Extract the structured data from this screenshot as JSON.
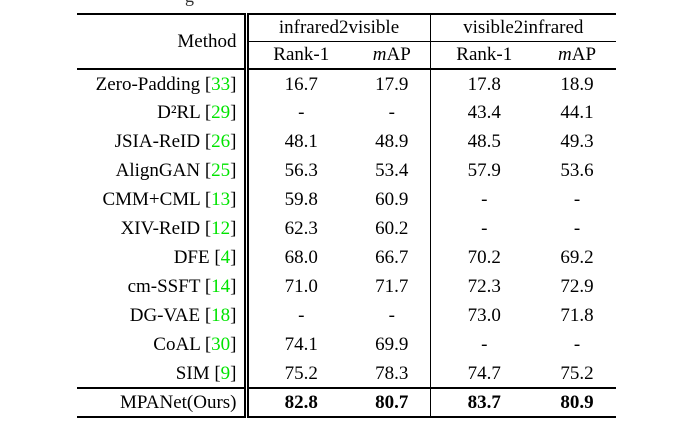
{
  "caption_fragment": "g",
  "colors": {
    "citation_green": "#00E400",
    "text": "#000000",
    "rule": "#000000",
    "background": "#ffffff"
  },
  "table": {
    "method_header": "Method",
    "groups": [
      {
        "label": "infrared2visible"
      },
      {
        "label": "visible2infrared"
      }
    ],
    "sub_headers": {
      "rank1": "Rank-1",
      "map_italic": "m",
      "map_rest": "AP"
    },
    "columns_per_group": [
      "Rank-1",
      "mAP"
    ],
    "rows": [
      {
        "method": "Zero-Padding",
        "cite": "33",
        "values": [
          "16.7",
          "17.9",
          "17.8",
          "18.9"
        ],
        "final": false
      },
      {
        "method": "D²RL",
        "cite": "29",
        "values": [
          "-",
          "-",
          "43.4",
          "44.1"
        ],
        "final": false
      },
      {
        "method": "JSIA-ReID",
        "cite": "26",
        "values": [
          "48.1",
          "48.9",
          "48.5",
          "49.3"
        ],
        "final": false
      },
      {
        "method": "AlignGAN",
        "cite": "25",
        "values": [
          "56.3",
          "53.4",
          "57.9",
          "53.6"
        ],
        "final": false
      },
      {
        "method": "CMM+CML",
        "cite": "13",
        "values": [
          "59.8",
          "60.9",
          "-",
          "-"
        ],
        "final": false
      },
      {
        "method": "XIV-ReID",
        "cite": "12",
        "values": [
          "62.3",
          "60.2",
          "-",
          "-"
        ],
        "final": false
      },
      {
        "method": "DFE",
        "cite": "4",
        "values": [
          "68.0",
          "66.7",
          "70.2",
          "69.2"
        ],
        "final": false
      },
      {
        "method": "cm-SSFT",
        "cite": "14",
        "values": [
          "71.0",
          "71.7",
          "72.3",
          "72.9"
        ],
        "final": false
      },
      {
        "method": "DG-VAE",
        "cite": "18",
        "values": [
          "-",
          "-",
          "73.0",
          "71.8"
        ],
        "final": false
      },
      {
        "method": "CoAL",
        "cite": "30",
        "values": [
          "74.1",
          "69.9",
          "-",
          "-"
        ],
        "final": false
      },
      {
        "method": "SIM",
        "cite": "9",
        "values": [
          "75.2",
          "78.3",
          "74.7",
          "75.2"
        ],
        "final": false
      },
      {
        "method": "MPANet(Ours)",
        "cite": null,
        "values": [
          "82.8",
          "80.7",
          "83.7",
          "80.9"
        ],
        "final": true
      }
    ]
  }
}
